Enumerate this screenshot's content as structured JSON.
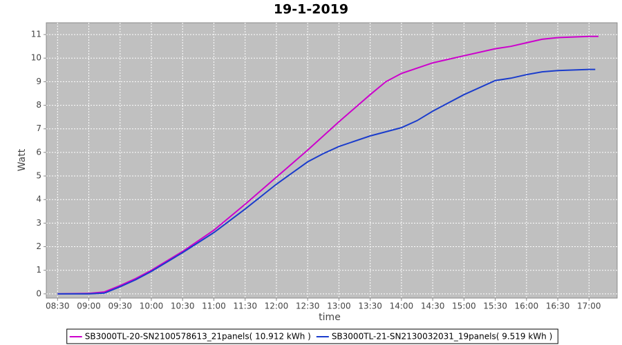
{
  "chart_data": {
    "type": "line",
    "title": "19-1-2019",
    "x_label": "time",
    "y_label": "Watt",
    "xlim": [
      8.32,
      17.45
    ],
    "ylim": [
      -0.18,
      11.5
    ],
    "xticks": [
      {
        "value": 8.5,
        "label": "08:30"
      },
      {
        "value": 9,
        "label": "09:00"
      },
      {
        "value": 9.5,
        "label": "09:30"
      },
      {
        "value": 10,
        "label": "10:00"
      },
      {
        "value": 10.5,
        "label": "10:30"
      },
      {
        "value": 11,
        "label": "11:00"
      },
      {
        "value": 11.5,
        "label": "11:30"
      },
      {
        "value": 12,
        "label": "12:00"
      },
      {
        "value": 12.5,
        "label": "12:30"
      },
      {
        "value": 13,
        "label": "13:00"
      },
      {
        "value": 13.5,
        "label": "13:30"
      },
      {
        "value": 14,
        "label": "14:00"
      },
      {
        "value": 14.5,
        "label": "14:30"
      },
      {
        "value": 15,
        "label": "15:00"
      },
      {
        "value": 15.5,
        "label": "15:30"
      },
      {
        "value": 16,
        "label": "16:00"
      },
      {
        "value": 16.5,
        "label": "16:30"
      },
      {
        "value": 17,
        "label": "17:00"
      }
    ],
    "yticks": [
      0,
      1,
      2,
      3,
      4,
      5,
      6,
      7,
      8,
      9,
      10,
      11
    ],
    "grid": true,
    "legend": "bottom",
    "series": [
      {
        "name": "SB3000TL-20-SN2100578613_21panels( 10.912 kWh )",
        "color": "#cc00cc",
        "x": [
          8.5,
          9.0,
          9.25,
          9.5,
          9.75,
          10,
          10.5,
          11,
          11.5,
          12,
          12.5,
          13,
          13.5,
          13.75,
          14,
          14.5,
          15,
          15.5,
          15.75,
          16,
          16.25,
          16.5,
          17,
          17.15
        ],
        "values": [
          0,
          0.02,
          0.08,
          0.35,
          0.65,
          1.0,
          1.8,
          2.7,
          3.8,
          4.95,
          6.1,
          7.3,
          8.45,
          9.0,
          9.35,
          9.8,
          10.1,
          10.4,
          10.5,
          10.65,
          10.8,
          10.87,
          10.92,
          10.92
        ]
      },
      {
        "name": "SB3000TL-21-SN2130032031_19panels( 9.519 kWh )",
        "color": "#1a3ccc",
        "x": [
          8.5,
          9.0,
          9.25,
          9.5,
          9.75,
          10,
          10.5,
          11,
          11.5,
          12,
          12.5,
          12.75,
          13,
          13.5,
          14,
          14.25,
          14.5,
          15,
          15.5,
          15.75,
          16,
          16.25,
          16.5,
          17,
          17.1
        ],
        "values": [
          0,
          0,
          0.03,
          0.3,
          0.6,
          0.95,
          1.75,
          2.6,
          3.6,
          4.65,
          5.6,
          5.95,
          6.25,
          6.7,
          7.05,
          7.35,
          7.75,
          8.45,
          9.05,
          9.15,
          9.3,
          9.42,
          9.47,
          9.52,
          9.52
        ]
      }
    ]
  }
}
